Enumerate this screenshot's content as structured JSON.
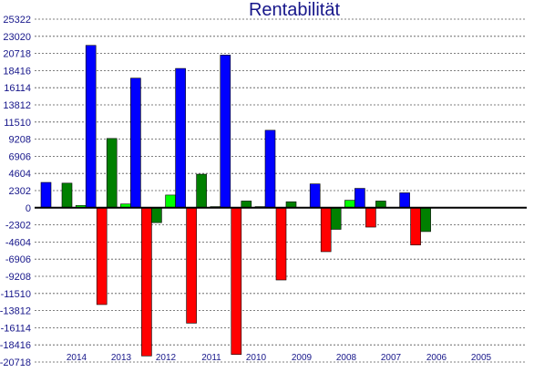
{
  "chart_data": {
    "type": "bar",
    "title": "Rentabilität",
    "xlabel": "",
    "ylabel": "",
    "ylim": [
      -20718,
      25322
    ],
    "yticks": [
      25322,
      23020,
      20718,
      18416,
      16114,
      13812,
      11510,
      9208,
      6906,
      4604,
      2302,
      0,
      -2302,
      -4604,
      -6906,
      -9208,
      -11510,
      -13812,
      -16114,
      -18416,
      -20718
    ],
    "categories": [
      "2014",
      "2013",
      "2012",
      "2011",
      "2010",
      "2009",
      "2008",
      "2007",
      "2006",
      "2005"
    ],
    "grid": true,
    "legend": "none",
    "series": [
      {
        "color": "#00ff00",
        "values": [
          null,
          300,
          500,
          1700,
          150,
          150,
          50,
          1000,
          50,
          null
        ]
      },
      {
        "color": "#0000ff",
        "values": [
          3400,
          21800,
          17400,
          18700,
          20500,
          10400,
          3200,
          2600,
          2000,
          null
        ]
      },
      {
        "color": "#ff0000",
        "values": [
          null,
          -13000,
          -19900,
          -15500,
          -19700,
          -9700,
          -5900,
          -2600,
          -5000,
          null
        ]
      },
      {
        "color": "#008000",
        "values": [
          3300,
          9300,
          -2000,
          4500,
          900,
          800,
          -2900,
          900,
          -3200,
          null
        ]
      }
    ]
  }
}
